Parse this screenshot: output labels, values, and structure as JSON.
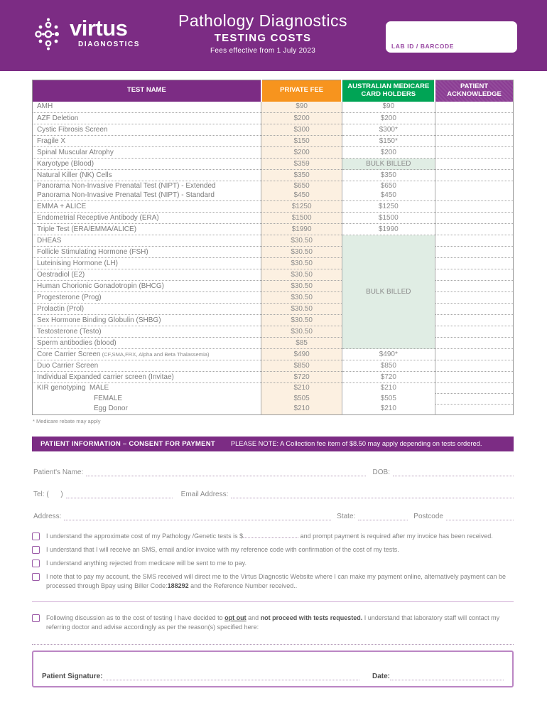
{
  "header": {
    "brand_name": "virtus",
    "brand_sub": "DIAGNOSTICS",
    "title": "Pathology Diagnostics",
    "subtitle": "TESTING COSTS",
    "effective": "Fees effective from 1 July 2023",
    "lab_box_label": "LAB ID / BARCODE"
  },
  "colors": {
    "brand_purple": "#7C2C84",
    "private_fee_orange": "#F7941E",
    "medicare_green": "#00A455",
    "ack_purple": "#8B3D93",
    "fee_cell_bg": "#FCF0E1",
    "bulk_cell_bg": "#E0EDE4"
  },
  "table": {
    "columns": [
      "TEST NAME",
      "PRIVATE FEE",
      "AUSTRALIAN MEDICARE CARD HOLDERS",
      "PATIENT ACKNOWLEDGE"
    ],
    "rows": [
      {
        "name": "AMH",
        "private": "$90",
        "medicare": "$90"
      },
      {
        "name": "AZF Deletion",
        "private": "$200",
        "medicare": "$200"
      },
      {
        "name": "Cystic Fibrosis Screen",
        "private": "$300",
        "medicare": "$300*"
      },
      {
        "name": "Fragile X",
        "private": "$150",
        "medicare": "$150*"
      },
      {
        "name": "Spinal Muscular Atrophy",
        "private": "$200",
        "medicare": "$200"
      },
      {
        "name": "Karyotype (Blood)",
        "private": "$359",
        "medicare": "BULK BILLED",
        "bulk": true
      },
      {
        "name": "Natural Killer (NK) Cells",
        "private": "$350",
        "medicare": "$350"
      },
      {
        "name": "Panorama Non-Invasive Prenatal Test (NIPT) - Extended",
        "name2": "Panorama Non-Invasive Prenatal Test (NIPT) - Standard",
        "private": "$650",
        "private2": "$450",
        "medicare": "$650",
        "medicare2": "$450"
      },
      {
        "name": "EMMA + ALICE",
        "private": "$1250",
        "medicare": "$1250"
      },
      {
        "name": "Endometrial Receptive Antibody (ERA)",
        "private": "$1500",
        "medicare": "$1500"
      },
      {
        "name": "Triple Test (ERA/EMMA/ALICE)",
        "private": "$1990",
        "medicare": "$1990"
      },
      {
        "name": "DHEAS",
        "private": "$30.50",
        "medicare": "BULK BILLED",
        "bulk": true,
        "bulk_span": 10
      },
      {
        "name": "Follicle Stimulating Hormone (FSH)",
        "private": "$30.50",
        "in_bulk": true
      },
      {
        "name": "Luteinising Hormone (LH)",
        "private": "$30.50",
        "in_bulk": true
      },
      {
        "name": "Oestradiol (E2)",
        "private": "$30.50",
        "in_bulk": true
      },
      {
        "name": "Human Chorionic Gonadotropin (BHCG)",
        "private": "$30.50",
        "in_bulk": true
      },
      {
        "name": "Progesterone (Prog)",
        "private": "$30.50",
        "in_bulk": true
      },
      {
        "name": "Prolactin (Prol)",
        "private": "$30.50",
        "in_bulk": true
      },
      {
        "name": "Sex Hormone Binding Globulin (SHBG)",
        "private": "$30.50",
        "in_bulk": true
      },
      {
        "name": "Testosterone (Testo)",
        "private": "$30.50",
        "in_bulk": true
      },
      {
        "name": "Sperm antibodies (blood)",
        "private": "$85",
        "in_bulk": true
      },
      {
        "name": "Core Carrier Screen",
        "detail": "(CF,SMA,FRX, Alpha and Beta Thalassemia)",
        "private": "$490",
        "medicare": "$490*"
      },
      {
        "name": "Duo Carrier Screen",
        "private": "$850",
        "medicare": "$850"
      },
      {
        "name": "Individual Expanded carrier screen (Invitae)",
        "private": "$720",
        "medicare": "$720"
      },
      {
        "group": "KIR genotyping",
        "sub": "MALE",
        "private": "$210",
        "medicare": "$210",
        "kir": true,
        "nb": true
      },
      {
        "sub": "FEMALE",
        "private": "$505",
        "medicare": "$505",
        "kir": true,
        "nb": true
      },
      {
        "sub": "Egg Donor",
        "private": "$210",
        "medicare": "$210",
        "kir": true
      }
    ],
    "footnote": "* Medicare rebate may apply"
  },
  "consent": {
    "banner_title": "PATIENT INFORMATION – CONSENT FOR PAYMENT",
    "banner_note": "PLEASE NOTE: A Collection fee item of $8.50 may apply depending on tests ordered.",
    "fields": {
      "patient_name": "Patient's Name:",
      "dob": "DOB:",
      "tel": "Tel: (      )",
      "email": "Email Address:",
      "address": "Address:",
      "state": "State:",
      "postcode": "Postcode"
    },
    "items": [
      {
        "pre": "I understand the approximate cost of my Pathology /Genetic tests is  $",
        "has_blank": true,
        "post": "  and prompt payment is required after my invoice has been received."
      },
      {
        "pre": "I understand that I will receive an SMS, email and/or invoice with my reference code with confirmation of the cost of my tests."
      },
      {
        "pre": "I understand anything rejected from medicare will be sent to me to pay."
      },
      {
        "pre": "I note that to pay my account, the SMS received will direct me to the Virtus Diagnostic Website where I can make my payment online, alternatively payment can be processed through Bpay using Biller Code:",
        "bold": "188292",
        "post": " and the Reference Number received.."
      }
    ],
    "optout": {
      "pre": "Following discussion as to the cost of testing I have decided to ",
      "bold_underline": "opt out",
      "mid": " and ",
      "bold": "not proceed with tests requested.",
      "post": " I understand that laboratory staff will contact my referring doctor and advise accordingly as per the reason(s) specified here:"
    },
    "signature_label": "Patient Signature:",
    "date_label": "Date:"
  }
}
